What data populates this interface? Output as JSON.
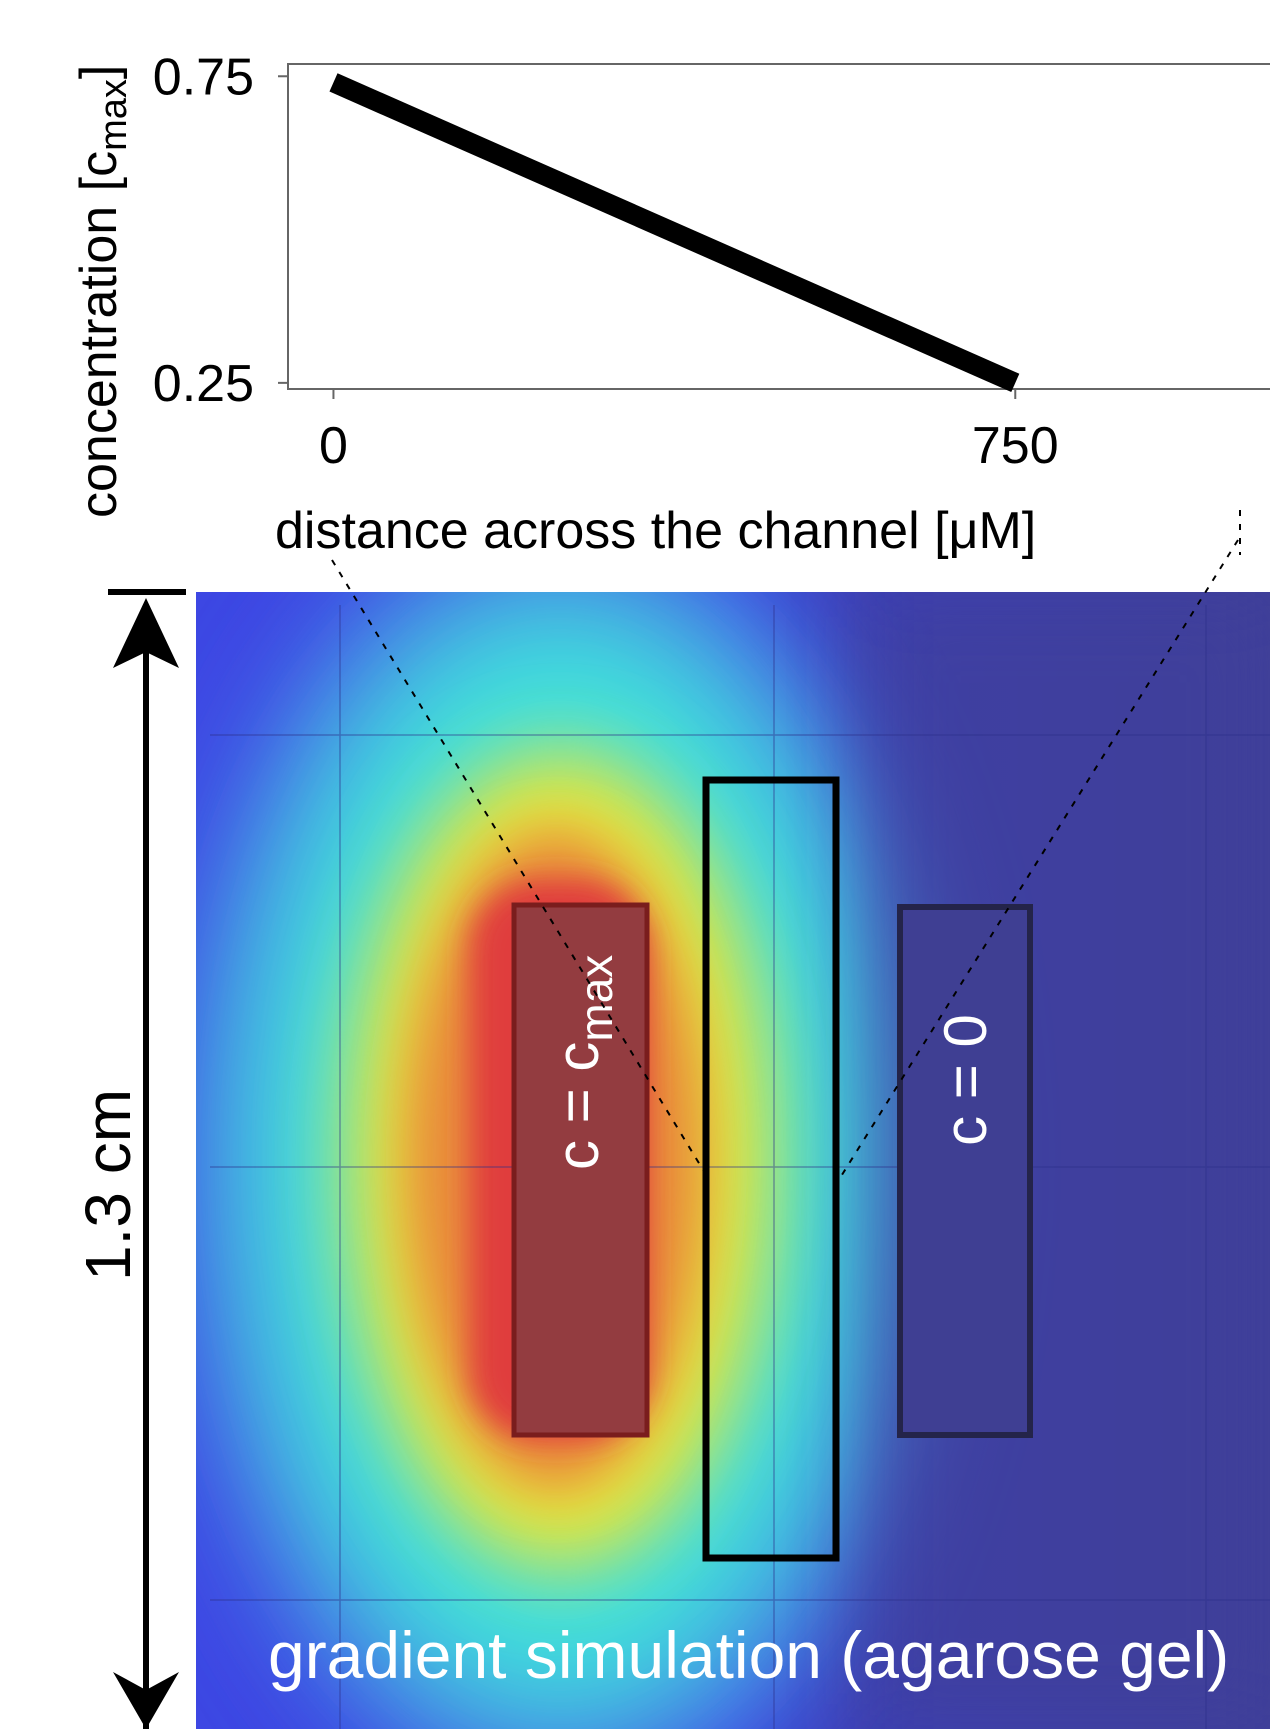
{
  "chart_data": [
    {
      "type": "line",
      "xlabel": "distance across the channel [μM]",
      "ylabel_main": "concentration [c",
      "ylabel_sub": "max",
      "ylabel_close": "]",
      "xlim": [
        -50,
        1050
      ],
      "ylim": [
        0.24,
        0.77
      ],
      "xticks": [
        0,
        750
      ],
      "xtick_labels": [
        "0",
        "750"
      ],
      "yticks": [
        0.25,
        0.75
      ],
      "ytick_labels": [
        "0.25",
        "0.75"
      ],
      "grid": false,
      "series": [
        {
          "x": [
            0,
            750
          ],
          "y": [
            0.74,
            0.25
          ],
          "color": "#000000"
        }
      ]
    },
    {
      "type": "heatmap",
      "title": "gradient simulation (agarose gel)",
      "scale_label": "1.3 cm",
      "colormap": "jet",
      "colors": [
        "#3a3ce0",
        "#3fe0dc",
        "#e6e63a",
        "#e03c3c",
        "#3f3f99"
      ],
      "regions": [
        {
          "label_main": "c = c",
          "label_sub": "max",
          "value": 1.0
        },
        {
          "label_main": "c = 0",
          "label_sub": "",
          "value": 0.0
        }
      ]
    }
  ]
}
